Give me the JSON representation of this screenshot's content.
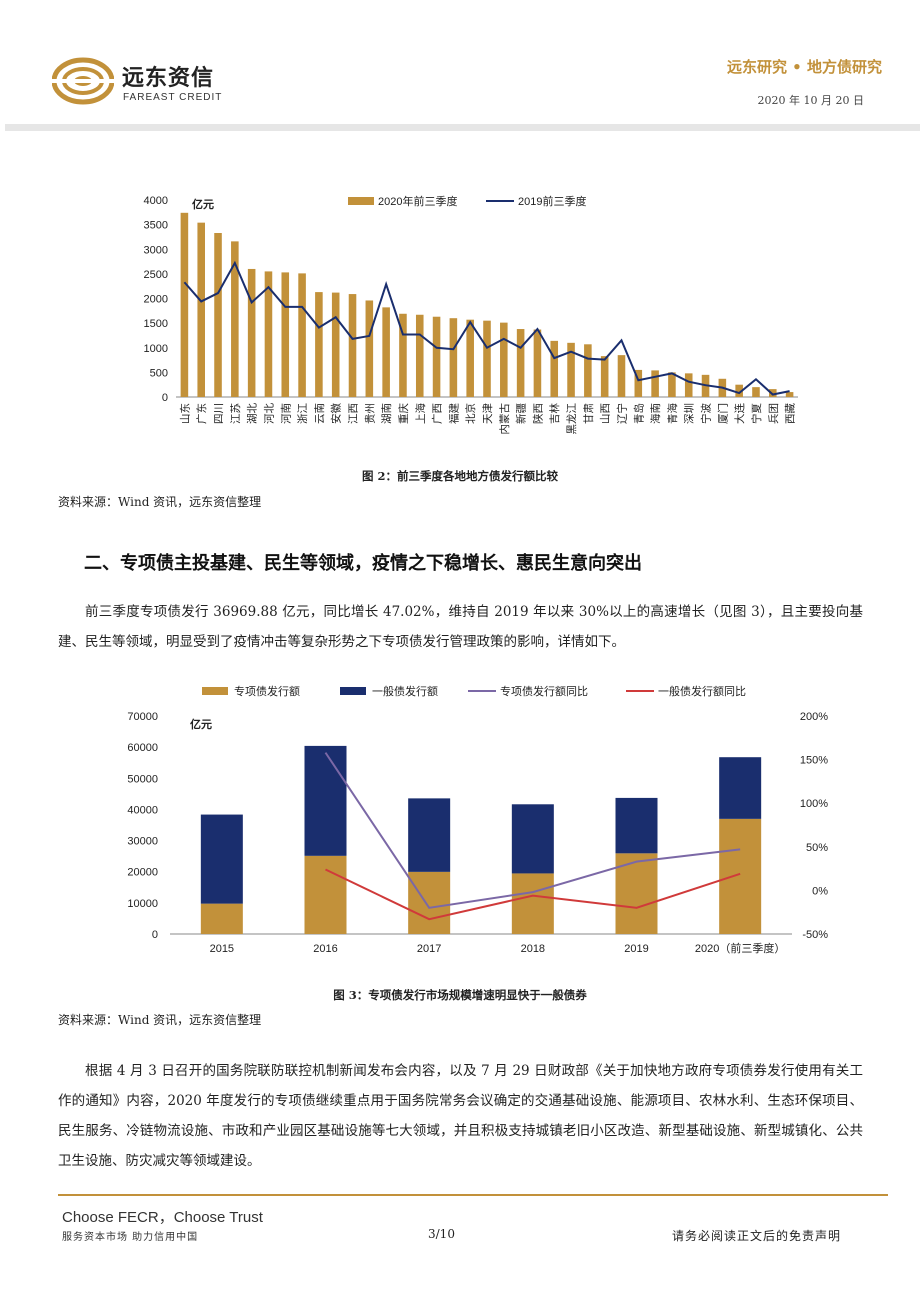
{
  "header": {
    "logo_name": "远东资信",
    "logo_sub": "FAREAST CREDIT",
    "series_title": "远东研究 • 地方债研究",
    "date": "2020 年 10 月 20 日",
    "brand_colors": {
      "gold": "#c2913a",
      "navy": "#1a2e6e"
    }
  },
  "figure2": {
    "caption": "图 2：前三季度各地地方债发行额比较",
    "source": "资料来源：Wind 资讯，远东资信整理"
  },
  "section": {
    "title": "二、专项债主投基建、民生等领域，疫情之下稳增长、惠民生意向突出",
    "para1": "前三季度专项债发行 36969.88 亿元，同比增长 47.02%，维持自 2019 年以来 30%以上的高速增长（见图 3），且主要投向基建、民生等领域，明显受到了疫情冲击等复杂形势之下专项债发行管理政策的影响，详情如下。"
  },
  "figure3": {
    "caption": "图 3：专项债发行市场规模增速明显快于一般债券",
    "source": "资料来源：Wind 资讯，远东资信整理"
  },
  "para2": "根据 4 月 3 日召开的国务院联防联控机制新闻发布会内容，以及 7 月 29 日财政部《关于加快地方政府专项债券发行使用有关工作的通知》内容，2020 年度发行的专项债继续重点用于国务院常务会议确定的交通基础设施、能源项目、农林水利、生态环保项目、民生服务、冷链物流设施、市政和产业园区基础设施等七大领域，并且积极支持城镇老旧小区改造、新型基础设施、新型城镇化、公共卫生设施、防灾减灾等领域建设。",
  "footer": {
    "brand": "Choose FECR，Choose Trust",
    "slogan": "服务资本市场  助力信用中国",
    "page": "3/10",
    "disclaimer": "请务必阅读正文后的免责声明"
  },
  "chart_data": [
    {
      "type": "bar",
      "title": "",
      "unit_label": "亿元",
      "categories": [
        "山东",
        "广东",
        "四川",
        "江苏",
        "湖北",
        "河北",
        "河南",
        "浙江",
        "云南",
        "安徽",
        "江西",
        "贵州",
        "湖南",
        "重庆",
        "上海",
        "广西",
        "福建",
        "北京",
        "天津",
        "内蒙古",
        "新疆",
        "陕西",
        "吉林",
        "黑龙江",
        "甘肃",
        "山西",
        "辽宁",
        "青岛",
        "海南",
        "青海",
        "深圳",
        "宁波",
        "厦门",
        "大连",
        "宁夏",
        "兵团",
        "西藏"
      ],
      "series": [
        {
          "name": "2020年前三季度",
          "kind": "bar",
          "color": "#c2913a",
          "values": [
            3740,
            3540,
            3330,
            3160,
            2600,
            2550,
            2530,
            2510,
            2130,
            2120,
            2090,
            1960,
            1820,
            1690,
            1670,
            1630,
            1600,
            1570,
            1550,
            1510,
            1380,
            1370,
            1140,
            1100,
            1070,
            830,
            850,
            550,
            540,
            500,
            480,
            450,
            370,
            250,
            200,
            160,
            100
          ]
        },
        {
          "name": "2019前三季度",
          "kind": "line",
          "color": "#1a2e6e",
          "values": [
            2330,
            1940,
            2110,
            2720,
            1920,
            2230,
            1830,
            1830,
            1410,
            1620,
            1180,
            1240,
            2290,
            1270,
            1270,
            1000,
            970,
            1520,
            1000,
            1180,
            1000,
            1380,
            790,
            920,
            780,
            760,
            1150,
            340,
            410,
            480,
            310,
            240,
            190,
            80,
            360,
            50,
            120
          ]
        }
      ],
      "ylim": [
        0,
        4000
      ],
      "yticks": [
        0,
        500,
        1000,
        1500,
        2000,
        2500,
        3000,
        3500,
        4000
      ],
      "legend": "top-right"
    },
    {
      "type": "bar",
      "title": "",
      "unit_label": "亿元",
      "categories": [
        "2015",
        "2016",
        "2017",
        "2018",
        "2019",
        "2020（前三季度）"
      ],
      "series": [
        {
          "name": "专项债发行额",
          "kind": "stacked-bar",
          "axis": "left",
          "color": "#c2913a",
          "values": [
            9750,
            25100,
            19950,
            19450,
            25900,
            36970
          ]
        },
        {
          "name": "一般债发行额",
          "kind": "stacked-bar",
          "axis": "left",
          "color": "#1a2e6e",
          "values": [
            28600,
            35300,
            23600,
            22200,
            17800,
            19800
          ]
        },
        {
          "name": "专项债发行额同比",
          "kind": "line",
          "axis": "right",
          "color": "#7b68a6",
          "values_pct": [
            null,
            158,
            -20,
            -2,
            33,
            47
          ]
        },
        {
          "name": "一般债发行额同比",
          "kind": "line",
          "axis": "right",
          "color": "#d03a3a",
          "values_pct": [
            null,
            24,
            -33,
            -6,
            -20,
            19
          ]
        }
      ],
      "ylim_left": [
        0,
        70000
      ],
      "yticks_left": [
        0,
        10000,
        20000,
        30000,
        40000,
        50000,
        60000,
        70000
      ],
      "ylim_right_pct": [
        -50,
        200
      ],
      "yticks_right": [
        "-50%",
        "0%",
        "50%",
        "100%",
        "150%",
        "200%"
      ],
      "legend": "top"
    }
  ]
}
